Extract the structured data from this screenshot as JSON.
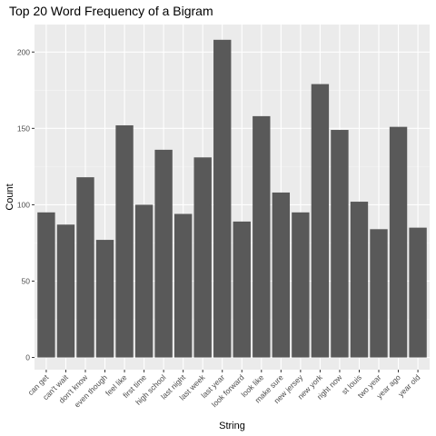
{
  "chart_data": {
    "type": "bar",
    "title": "Top 20 Word Frequency of a Bigram",
    "xlabel": "String",
    "ylabel": "Count",
    "categories": [
      "can get",
      "can't wait",
      "don't know",
      "even though",
      "feel like",
      "first time",
      "high school",
      "last night",
      "last week",
      "last year",
      "look forward",
      "look like",
      "make sure",
      "new jersey",
      "new york",
      "right now",
      "st louis",
      "two year",
      "year ago",
      "year old"
    ],
    "values": [
      95,
      87,
      118,
      77,
      152,
      100,
      136,
      94,
      131,
      208,
      89,
      158,
      108,
      95,
      179,
      149,
      102,
      84,
      151,
      85
    ],
    "ylim": [
      -8,
      218
    ],
    "yticks": [
      0,
      50,
      100,
      150,
      200
    ],
    "grid": true,
    "colors": {
      "bar": "#595959",
      "panel": "#ebebeb",
      "grid_major": "#ffffff",
      "grid_minor": "#f5f5f5",
      "tick": "#333333"
    }
  }
}
